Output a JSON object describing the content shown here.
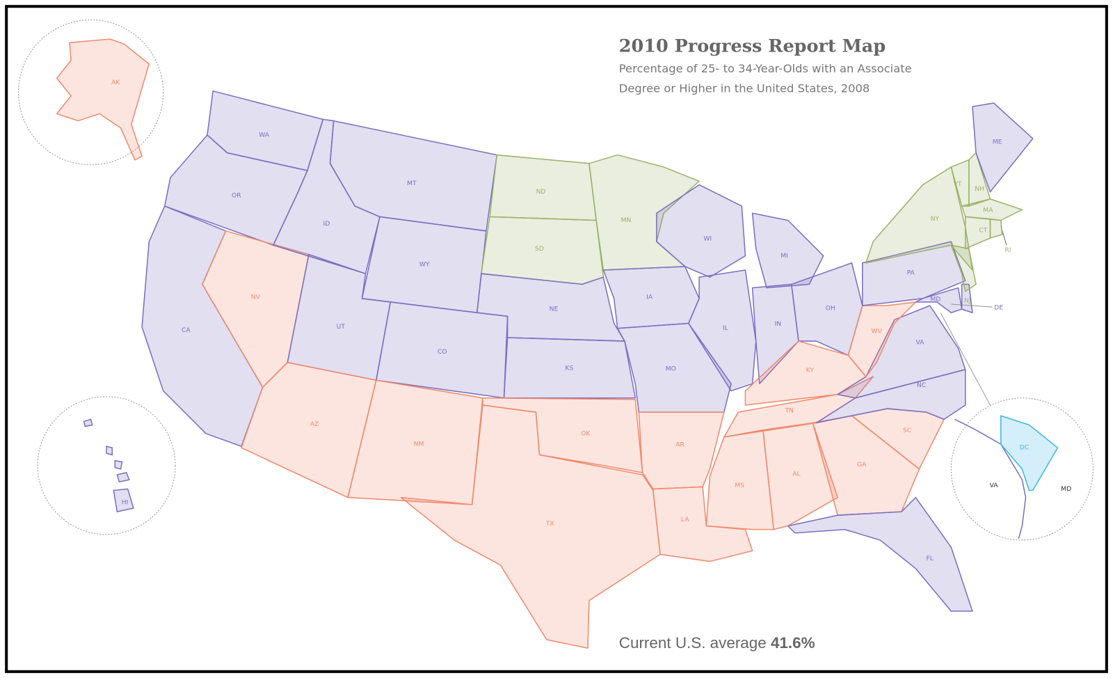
{
  "title": "2010 Progress Report Map",
  "subtitle": [
    "Percentage of 25- to 34-Year-Olds with an Associate",
    "Degree or Higher in the United States, 2008"
  ],
  "footer": {
    "text": "Current U.S. average",
    "value": "41.6%"
  },
  "states": [
    {
      "label": "WA",
      "color": "#7b6fc0"
    },
    {
      "label": "OR",
      "color": "#7b6fc0"
    },
    {
      "label": "CA",
      "color": "#7b6fc0"
    },
    {
      "label": "NV",
      "color": "#f08a6c"
    },
    {
      "label": "ID",
      "color": "#7b6fc0"
    },
    {
      "label": "MT",
      "color": "#7b6fc0"
    },
    {
      "label": "WY",
      "color": "#7b6fc0"
    },
    {
      "label": "UT",
      "color": "#7b6fc0"
    },
    {
      "label": "CO",
      "color": "#7b6fc0"
    },
    {
      "label": "AZ",
      "color": "#f08a6c"
    },
    {
      "label": "NM",
      "color": "#f08a6c"
    },
    {
      "label": "ND",
      "color": "#9bb36a"
    },
    {
      "label": "SD",
      "color": "#9bb36a"
    },
    {
      "label": "NE",
      "color": "#7b6fc0"
    },
    {
      "label": "KS",
      "color": "#7b6fc0"
    },
    {
      "label": "OK",
      "color": "#f08a6c"
    },
    {
      "label": "TX",
      "color": "#f08a6c"
    },
    {
      "label": "MN",
      "color": "#9bb36a"
    },
    {
      "label": "IA",
      "color": "#7b6fc0"
    },
    {
      "label": "MO",
      "color": "#7b6fc0"
    },
    {
      "label": "AR",
      "color": "#f08a6c"
    },
    {
      "label": "LA",
      "color": "#f08a6c"
    },
    {
      "label": "WI",
      "color": "#7b6fc0"
    },
    {
      "label": "IL",
      "color": "#7b6fc0"
    },
    {
      "label": "MI",
      "color": "#7b6fc0"
    },
    {
      "label": "IN",
      "color": "#7b6fc0"
    },
    {
      "label": "OH",
      "color": "#7b6fc0"
    },
    {
      "label": "KY",
      "color": "#f08a6c"
    },
    {
      "label": "TN",
      "color": "#f08a6c"
    },
    {
      "label": "MS",
      "color": "#f08a6c"
    },
    {
      "label": "AL",
      "color": "#f08a6c"
    },
    {
      "label": "GA",
      "color": "#f08a6c"
    },
    {
      "label": "FL",
      "color": "#7b6fc0"
    },
    {
      "label": "SC",
      "color": "#f08a6c"
    },
    {
      "label": "NC",
      "color": "#7b6fc0"
    },
    {
      "label": "VA",
      "color": "#7b6fc0"
    },
    {
      "label": "WV",
      "color": "#f08a6c"
    },
    {
      "label": "PA",
      "color": "#7b6fc0"
    },
    {
      "label": "NY",
      "color": "#9bb36a"
    },
    {
      "label": "MD",
      "color": "#7b6fc0"
    },
    {
      "label": "DE",
      "color": "#7b6fc0"
    },
    {
      "label": "NJ",
      "color": "#9bb36a"
    },
    {
      "label": "VT",
      "color": "#9bb36a"
    },
    {
      "label": "NH",
      "color": "#9bb36a"
    },
    {
      "label": "ME",
      "color": "#7b6fc0"
    },
    {
      "label": "MA",
      "color": "#9bb36a"
    },
    {
      "label": "CT",
      "color": "#9bb36a"
    },
    {
      "label": "RI",
      "color": "#9bb36a"
    },
    {
      "label": "AK",
      "color": "#f08a6c"
    },
    {
      "label": "HI",
      "color": "#7b6fc0"
    },
    {
      "label": "DC",
      "color": "#3db7e4"
    }
  ],
  "inset_labels": [
    "VA",
    "MD"
  ]
}
